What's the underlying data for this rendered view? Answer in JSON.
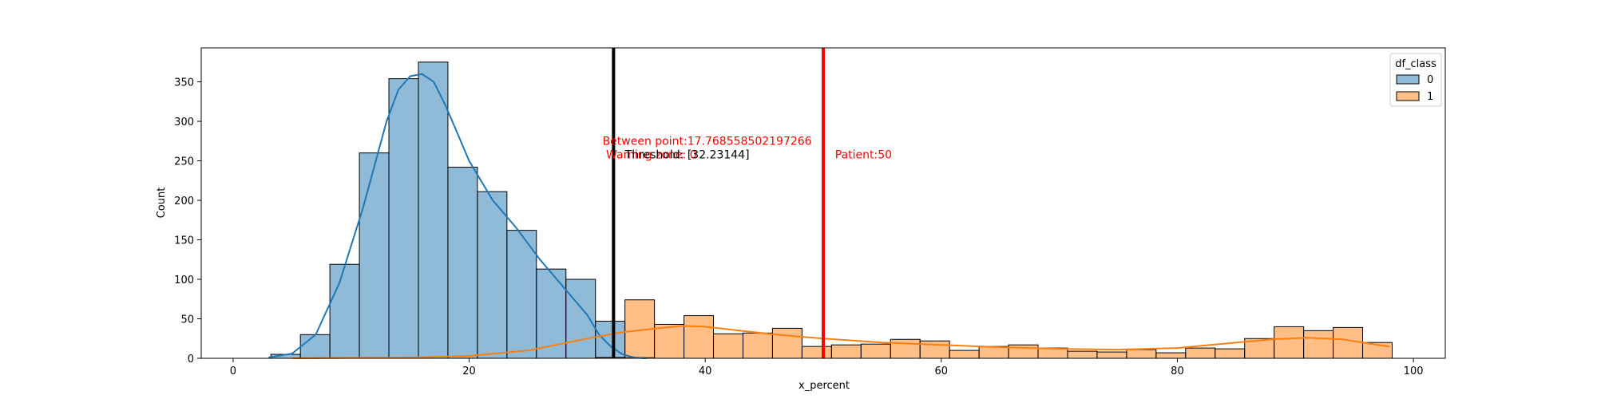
{
  "chart_data": {
    "type": "bar",
    "xlabel": "x_percent",
    "ylabel": "Count",
    "xlim": [
      -2.7,
      102.7
    ],
    "ylim": [
      0,
      393
    ],
    "xticks": [
      0,
      20,
      40,
      60,
      80,
      100
    ],
    "yticks": [
      0,
      50,
      100,
      150,
      200,
      250,
      300,
      350
    ],
    "bin_width": 2.5,
    "grid": false,
    "legend_placement": "top-right",
    "legend": {
      "title": "df_class",
      "entries": [
        {
          "label": "0",
          "color": "#1f77b4"
        },
        {
          "label": "1",
          "color": "#ff7f0e"
        }
      ]
    },
    "series": [
      {
        "name": "0",
        "color": "#1f77b4",
        "bins": [
          {
            "x0": 3.2,
            "value": 5
          },
          {
            "x0": 5.7,
            "value": 30
          },
          {
            "x0": 8.2,
            "value": 119
          },
          {
            "x0": 10.7,
            "value": 260
          },
          {
            "x0": 13.2,
            "value": 354
          },
          {
            "x0": 15.7,
            "value": 375
          },
          {
            "x0": 18.2,
            "value": 242
          },
          {
            "x0": 20.7,
            "value": 211
          },
          {
            "x0": 23.2,
            "value": 162
          },
          {
            "x0": 25.7,
            "value": 113
          },
          {
            "x0": 28.2,
            "value": 100
          },
          {
            "x0": 30.7,
            "value": 47
          },
          {
            "x0": 33.2,
            "value": 1
          }
        ],
        "kde": [
          [
            3,
            1
          ],
          [
            5,
            6
          ],
          [
            7,
            30
          ],
          [
            9,
            95
          ],
          [
            11,
            190
          ],
          [
            13,
            300
          ],
          [
            14,
            340
          ],
          [
            15,
            357
          ],
          [
            16,
            360
          ],
          [
            17,
            350
          ],
          [
            18,
            320
          ],
          [
            19,
            285
          ],
          [
            20,
            250
          ],
          [
            22,
            200
          ],
          [
            24,
            165
          ],
          [
            26,
            125
          ],
          [
            28,
            90
          ],
          [
            30,
            55
          ],
          [
            31,
            30
          ],
          [
            32,
            15
          ],
          [
            33,
            5
          ],
          [
            34,
            1
          ],
          [
            35,
            0
          ]
        ]
      },
      {
        "name": "1",
        "color": "#ff7f0e",
        "bins": [
          {
            "x0": 30.7,
            "value": 1
          },
          {
            "x0": 33.2,
            "value": 74
          },
          {
            "x0": 35.7,
            "value": 43
          },
          {
            "x0": 38.2,
            "value": 54
          },
          {
            "x0": 40.7,
            "value": 31
          },
          {
            "x0": 43.2,
            "value": 32
          },
          {
            "x0": 45.7,
            "value": 38
          },
          {
            "x0": 48.2,
            "value": 15
          },
          {
            "x0": 50.7,
            "value": 17
          },
          {
            "x0": 53.2,
            "value": 18
          },
          {
            "x0": 55.7,
            "value": 24
          },
          {
            "x0": 58.2,
            "value": 22
          },
          {
            "x0": 60.7,
            "value": 10
          },
          {
            "x0": 63.2,
            "value": 15
          },
          {
            "x0": 65.7,
            "value": 17
          },
          {
            "x0": 68.2,
            "value": 13
          },
          {
            "x0": 70.7,
            "value": 9
          },
          {
            "x0": 73.2,
            "value": 8
          },
          {
            "x0": 75.7,
            "value": 11
          },
          {
            "x0": 78.2,
            "value": 7
          },
          {
            "x0": 80.7,
            "value": 13
          },
          {
            "x0": 83.2,
            "value": 12
          },
          {
            "x0": 85.7,
            "value": 25
          },
          {
            "x0": 88.2,
            "value": 40
          },
          {
            "x0": 90.7,
            "value": 35
          },
          {
            "x0": 93.2,
            "value": 39
          },
          {
            "x0": 95.7,
            "value": 20
          }
        ],
        "kde": [
          [
            5,
            0
          ],
          [
            15,
            1
          ],
          [
            20,
            3
          ],
          [
            25,
            10
          ],
          [
            30,
            25
          ],
          [
            33,
            33
          ],
          [
            36,
            38
          ],
          [
            38,
            41
          ],
          [
            40,
            40
          ],
          [
            43,
            35
          ],
          [
            46,
            30
          ],
          [
            50,
            25
          ],
          [
            55,
            20
          ],
          [
            60,
            17
          ],
          [
            65,
            14
          ],
          [
            70,
            12
          ],
          [
            75,
            11
          ],
          [
            80,
            13
          ],
          [
            85,
            20
          ],
          [
            88,
            24
          ],
          [
            91,
            26
          ],
          [
            94,
            24
          ],
          [
            97,
            17
          ],
          [
            98,
            15
          ]
        ]
      }
    ],
    "vlines": [
      {
        "x": 32.23144,
        "color": "#000000",
        "label": "Threshold: [32.23144]"
      },
      {
        "x": 50,
        "color": "#ff0000",
        "label": "Patient:50"
      }
    ],
    "annotations": [
      {
        "text": "Between point:17.768558502197266",
        "x": 31.3,
        "y": 270,
        "color": "#ff0000"
      },
      {
        "text": "Warning zone: 0",
        "x": 31.6,
        "y": 253,
        "color": "#ff0000"
      },
      {
        "text": "Threshold: [32.23144]",
        "x": 33.2,
        "y": 253,
        "color": "#000000"
      },
      {
        "text": "Patient:50",
        "x": 51,
        "y": 253,
        "color": "#ff0000"
      }
    ]
  }
}
